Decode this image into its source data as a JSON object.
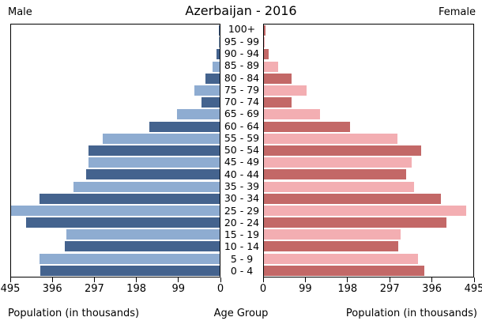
{
  "header": {
    "male_label": "Male",
    "female_label": "Female"
  },
  "footer": {
    "left": "Population (in thousands)",
    "center": "Age Group",
    "right": "Population (in thousands)"
  },
  "chart_data": {
    "type": "bar",
    "subtype": "population-pyramid",
    "title": "Azerbaijan - 2016",
    "unit": "thousands",
    "x_max": 495,
    "x_ticks_left": [
      "495",
      "396",
      "297",
      "198",
      "99",
      "0"
    ],
    "x_ticks_right": [
      "0",
      "99",
      "198",
      "297",
      "396",
      "495"
    ],
    "grid": false,
    "categories": [
      "0 - 4",
      "5 - 9",
      "10 - 14",
      "15 - 19",
      "20 - 24",
      "25 - 29",
      "30 - 34",
      "35 - 39",
      "40 - 44",
      "45 - 49",
      "50 - 54",
      "55 - 59",
      "60 - 64",
      "65 - 69",
      "70 - 74",
      "75 - 79",
      "80 - 84",
      "85 - 89",
      "90 - 94",
      "95 - 99",
      "100+"
    ],
    "series": [
      {
        "name": "Male",
        "side": "left",
        "values": [
          425,
          427,
          367,
          364,
          459,
          495,
          427,
          347,
          316,
          312,
          312,
          278,
          167,
          101,
          43,
          60,
          34,
          16,
          8,
          1,
          2
        ]
      },
      {
        "name": "Female",
        "side": "right",
        "values": [
          379,
          365,
          317,
          323,
          431,
          478,
          419,
          354,
          336,
          349,
          371,
          315,
          203,
          133,
          65,
          101,
          65,
          34,
          11,
          2,
          4
        ]
      }
    ],
    "colors": {
      "male_dark": "#44638e",
      "male_light": "#8eacd1",
      "female_dark": "#c36867",
      "female_light": "#f3aeb2"
    }
  }
}
